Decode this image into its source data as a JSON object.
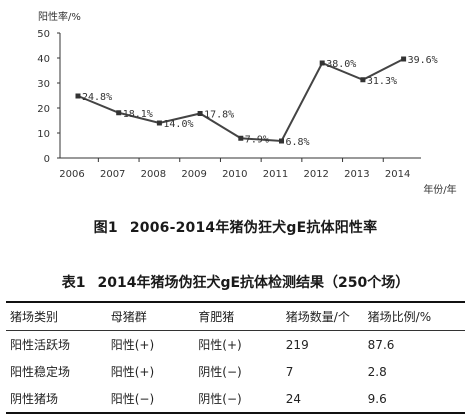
{
  "chart_data": {
    "type": "line",
    "ylabel": "阳性率/%",
    "xlabel": "年份/年",
    "categories": [
      "2006",
      "2007",
      "2008",
      "2009",
      "2010",
      "2011",
      "2012",
      "2013",
      "2014"
    ],
    "values": [
      24.8,
      18.1,
      14.0,
      17.8,
      7.9,
      6.8,
      38.0,
      31.3,
      39.6
    ],
    "data_labels": [
      "24.8%",
      "18.1%",
      "14.0%",
      "17.8%",
      "7.9%",
      "6.8%",
      "38.0%",
      "31.3%",
      "39.6%"
    ],
    "yticks": [
      "0",
      "10",
      "20",
      "30",
      "40",
      "50"
    ],
    "ylim": [
      0,
      50
    ],
    "grid": false,
    "line_color": "#444444"
  },
  "figure_caption": {
    "number": "图1",
    "text": "2006-2014年猪伪狂犬gE抗体阳性率"
  },
  "table": {
    "caption_number": "表1",
    "caption_text": "2014年猪场伪狂犬gE抗体检测结果（250个场）",
    "headers": [
      "猪场类别",
      "母猪群",
      "育肥猪",
      "猪场数量/个",
      "猪场比例/%"
    ],
    "rows": [
      [
        "阳性活跃场",
        "阳性(+)",
        "阳性(+)",
        "219",
        "87.6"
      ],
      [
        "阳性稳定场",
        "阳性(+)",
        "阴性(−)",
        "7",
        "2.8"
      ],
      [
        "阴性猪场",
        "阳性(−)",
        "阴性(−)",
        "24",
        "9.6"
      ]
    ]
  }
}
